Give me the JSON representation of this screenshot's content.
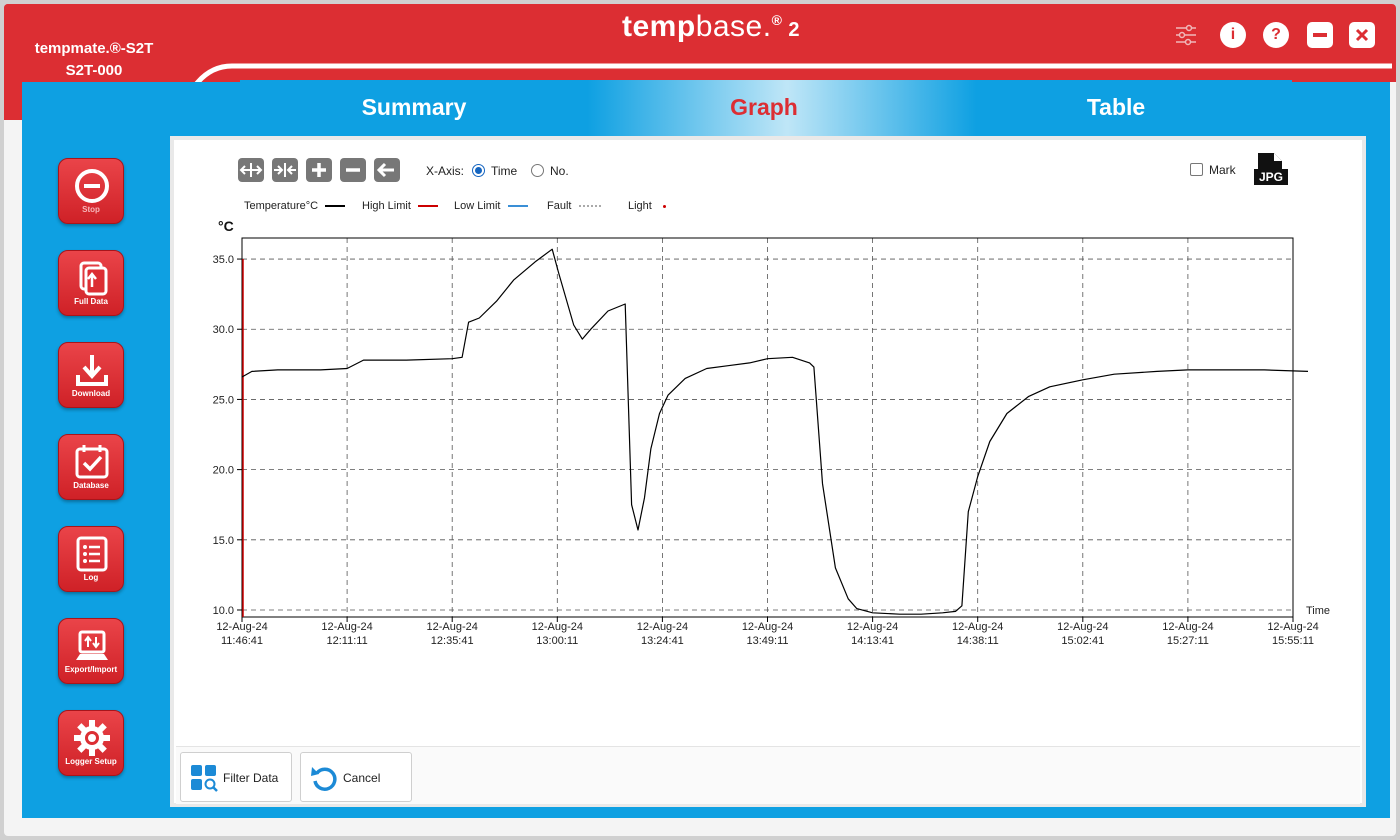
{
  "window": {
    "device_model": "tempmate.®-S2T",
    "device_id": "S2T-000",
    "brand_temp": "temp",
    "brand_base": "base.",
    "brand_reg": "®",
    "brand_version": "2",
    "colors": {
      "header_red": "#dc2e33",
      "body_blue": "#0ea0e2",
      "active_tab": "#dc2e33"
    }
  },
  "header_icons": [
    "settings-sliders-icon",
    "info-icon",
    "help-icon",
    "minimize-icon",
    "close-icon"
  ],
  "header_glyphs": {
    "info": "i",
    "help": "?"
  },
  "tabs": [
    {
      "label": "Summary",
      "active": false
    },
    {
      "label": "Graph",
      "active": true
    },
    {
      "label": "Table",
      "active": false
    }
  ],
  "sidebar": {
    "items": [
      {
        "label": "Stop",
        "icon": "stop-icon"
      },
      {
        "label": "Full Data",
        "icon": "full-data-icon"
      },
      {
        "label": "Download",
        "icon": "download-icon"
      },
      {
        "label": "Database",
        "icon": "database-calendar-icon"
      },
      {
        "label": "Log",
        "icon": "log-list-icon"
      },
      {
        "label": "Export/Import",
        "icon": "export-import-icon"
      },
      {
        "label": "Logger Setup",
        "icon": "gear-icon"
      }
    ]
  },
  "toolbar": {
    "tools": [
      "zoom-expand-icon",
      "zoom-shrink-icon",
      "zoom-in-icon",
      "zoom-out-icon",
      "back-arrow-icon"
    ],
    "xaxis_label": "X-Axis:",
    "xaxis_options": [
      {
        "label": "Time",
        "selected": true
      },
      {
        "label": "No.",
        "selected": false
      }
    ],
    "mark_label": "Mark",
    "mark_checked": false,
    "export_label": "JPG"
  },
  "legend": [
    {
      "label": "Temperature°C",
      "color": "#000000",
      "style": "solid"
    },
    {
      "label": "High Limit",
      "color": "#cc0000",
      "style": "solid"
    },
    {
      "label": "Low Limit",
      "color": "#3a8fd6",
      "style": "solid"
    },
    {
      "label": "Fault",
      "color": "#aaaaaa",
      "style": "dotted"
    },
    {
      "label": "Light",
      "color": "#cc0000",
      "style": "dot"
    }
  ],
  "buttons": {
    "filter_label": "Filter Data",
    "cancel_label": "Cancel"
  },
  "chart_data": {
    "type": "line",
    "ylabel": "°C",
    "xlabel": "Time",
    "ylim": [
      9.5,
      36.5
    ],
    "yticks": [
      "35.0",
      "30.0",
      "25.0",
      "20.0",
      "15.0",
      "10.0"
    ],
    "ytick_values": [
      35,
      30,
      25,
      20,
      15,
      10
    ],
    "xticks": [
      {
        "date": "12-Aug-24",
        "time": "11:46:41"
      },
      {
        "date": "12-Aug-24",
        "time": "12:11:11"
      },
      {
        "date": "12-Aug-24",
        "time": "12:35:41"
      },
      {
        "date": "12-Aug-24",
        "time": "13:00:11"
      },
      {
        "date": "12-Aug-24",
        "time": "13:24:41"
      },
      {
        "date": "12-Aug-24",
        "time": "13:49:11"
      },
      {
        "date": "12-Aug-24",
        "time": "14:13:41"
      },
      {
        "date": "12-Aug-24",
        "time": "14:38:11"
      },
      {
        "date": "12-Aug-24",
        "time": "15:02:41"
      },
      {
        "date": "12-Aug-24",
        "time": "15:27:11"
      },
      {
        "date": "12-Aug-24",
        "time": "15:55:11"
      }
    ],
    "grid": true,
    "series": [
      {
        "name": "Temperature°C",
        "color": "#000000",
        "x": [
          "11:46:41",
          "11:49:00",
          "11:55:00",
          "12:05:00",
          "12:11:11",
          "12:15:00",
          "12:25:00",
          "12:35:41",
          "12:38:00",
          "12:39:30",
          "12:42:00",
          "12:46:00",
          "12:50:00",
          "12:55:00",
          "12:59:00",
          "13:00:30",
          "13:04:00",
          "13:06:00",
          "13:08:00",
          "13:12:00",
          "13:16:00",
          "13:17:30",
          "13:19:00",
          "13:20:30",
          "13:22:00",
          "13:24:00",
          "13:26:00",
          "13:30:00",
          "13:35:00",
          "13:40:00",
          "13:45:00",
          "13:49:11",
          "13:55:00",
          "13:59:00",
          "14:00:00",
          "14:02:00",
          "14:05:00",
          "14:08:00",
          "14:10:00",
          "14:13:41",
          "14:20:00",
          "14:25:00",
          "14:30:00",
          "14:33:00",
          "14:34:30",
          "14:36:00",
          "14:38:11",
          "14:41:00",
          "14:45:00",
          "14:50:00",
          "14:55:00",
          "15:02:41",
          "15:10:00",
          "15:20:00",
          "15:27:11",
          "15:35:00",
          "15:45:00",
          "15:55:11"
        ],
        "values": [
          26.6,
          27.0,
          27.1,
          27.1,
          27.2,
          27.8,
          27.8,
          27.9,
          28.0,
          30.5,
          30.8,
          32.0,
          33.5,
          34.8,
          35.7,
          34.0,
          30.3,
          29.3,
          30.0,
          31.3,
          31.8,
          17.5,
          15.7,
          18.0,
          21.5,
          24.0,
          25.3,
          26.5,
          27.2,
          27.4,
          27.6,
          27.9,
          28.0,
          27.6,
          27.3,
          19.0,
          13.0,
          10.8,
          10.1,
          9.8,
          9.7,
          9.7,
          9.8,
          9.9,
          10.3,
          17.0,
          19.5,
          22.0,
          24.0,
          25.2,
          25.9,
          26.4,
          26.8,
          27.0,
          27.1,
          27.1,
          27.1,
          27.0
        ]
      }
    ]
  }
}
